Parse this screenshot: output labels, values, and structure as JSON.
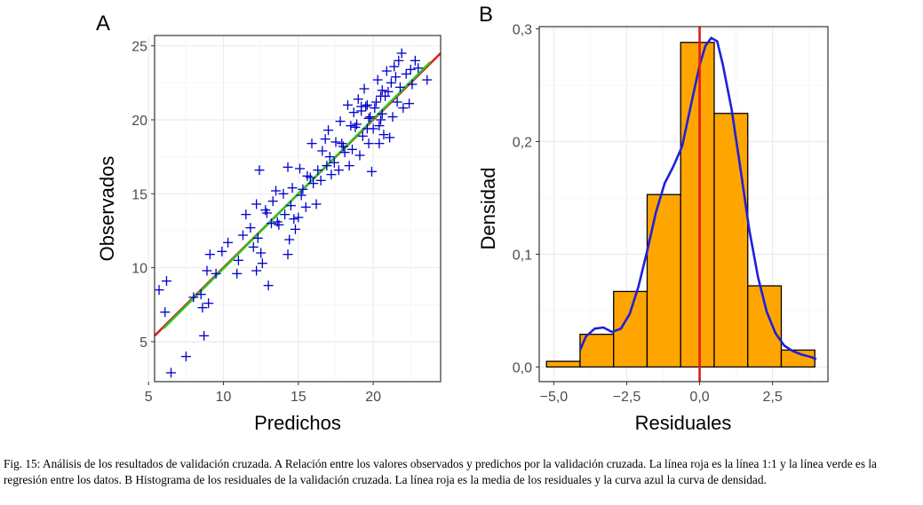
{
  "figure": {
    "caption": "Fig. 15: Análisis de los resultados de validación cruzada. A Relación entre los valores observados y predichos por la validación cruzada. La línea roja es la línea 1:1 y la línea verde es la regresión entre los datos. B Histograma de los residuales de la validación cruzada. La línea roja es la media de los residuales y la curva azul la curva de densidad."
  },
  "colors": {
    "points": "#0000cc",
    "one_to_one_line": "#e31a1c",
    "regression_line": "#22cc22",
    "bars_fill": "#ffa500",
    "bars_stroke": "#000000",
    "density_curve": "#1f1fdd",
    "mean_line": "#e31a1c",
    "grid_major": "#ebebeb",
    "grid_minor": "#f5f5f5"
  },
  "chart_data": [
    {
      "panel_label": "A",
      "type": "scatter",
      "title": "",
      "xlabel": "Predichos",
      "ylabel": "Observados",
      "xlim": [
        5.4,
        24.5
      ],
      "ylim": [
        2.3,
        25.7
      ],
      "xticks": [
        5,
        10,
        15,
        20
      ],
      "yticks": [
        5,
        10,
        15,
        20,
        25
      ],
      "xtick_labels": [
        "5",
        "10",
        "15",
        "20"
      ],
      "ytick_labels": [
        "5",
        "10",
        "15",
        "20",
        "25"
      ],
      "grid": true,
      "marker": "+",
      "lines": [
        {
          "name": "1:1",
          "x": [
            5.4,
            24.5
          ],
          "y": [
            5.4,
            24.5
          ]
        },
        {
          "name": "regresion",
          "x": [
            6.0,
            23.8
          ],
          "y": [
            5.9,
            23.9
          ]
        }
      ],
      "points": [
        [
          5.7,
          8.5
        ],
        [
          6.2,
          9.1
        ],
        [
          6.1,
          7.0
        ],
        [
          6.5,
          2.9
        ],
        [
          7.5,
          4.0
        ],
        [
          8.0,
          8.0
        ],
        [
          8.5,
          8.2
        ],
        [
          8.7,
          5.4
        ],
        [
          8.6,
          7.3
        ],
        [
          9.0,
          7.6
        ],
        [
          8.9,
          9.8
        ],
        [
          9.1,
          10.9
        ],
        [
          9.5,
          9.6
        ],
        [
          9.9,
          11.1
        ],
        [
          10.3,
          11.7
        ],
        [
          10.9,
          9.6
        ],
        [
          11.0,
          10.5
        ],
        [
          11.3,
          12.2
        ],
        [
          11.5,
          13.6
        ],
        [
          11.8,
          12.7
        ],
        [
          12.0,
          11.4
        ],
        [
          12.2,
          14.3
        ],
        [
          12.3,
          12.0
        ],
        [
          12.6,
          10.3
        ],
        [
          12.4,
          16.6
        ],
        [
          12.8,
          13.9
        ],
        [
          12.9,
          13.7
        ],
        [
          13.0,
          8.8
        ],
        [
          12.2,
          9.8
        ],
        [
          12.5,
          11.0
        ],
        [
          13.3,
          14.5
        ],
        [
          13.5,
          15.2
        ],
        [
          13.2,
          13.0
        ],
        [
          13.7,
          12.9
        ],
        [
          13.6,
          13.1
        ],
        [
          14.0,
          15.0
        ],
        [
          14.1,
          13.6
        ],
        [
          14.3,
          16.8
        ],
        [
          14.4,
          11.9
        ],
        [
          14.5,
          14.2
        ],
        [
          14.6,
          15.4
        ],
        [
          14.7,
          13.3
        ],
        [
          14.8,
          12.6
        ],
        [
          15.0,
          13.4
        ],
        [
          15.1,
          16.7
        ],
        [
          15.2,
          14.9
        ],
        [
          15.3,
          15.3
        ],
        [
          14.3,
          10.9
        ],
        [
          15.5,
          14.1
        ],
        [
          15.6,
          16.2
        ],
        [
          15.8,
          16.1
        ],
        [
          15.9,
          18.4
        ],
        [
          16.0,
          15.7
        ],
        [
          16.2,
          14.3
        ],
        [
          16.3,
          16.6
        ],
        [
          16.5,
          15.9
        ],
        [
          16.6,
          17.9
        ],
        [
          16.8,
          18.7
        ],
        [
          17.0,
          19.3
        ],
        [
          17.1,
          17.5
        ],
        [
          17.2,
          16.3
        ],
        [
          17.4,
          17.1
        ],
        [
          17.5,
          18.5
        ],
        [
          17.7,
          16.6
        ],
        [
          17.8,
          19.9
        ],
        [
          18.0,
          18.2
        ],
        [
          18.1,
          17.8
        ],
        [
          18.3,
          21.0
        ],
        [
          18.4,
          16.9
        ],
        [
          18.5,
          19.6
        ],
        [
          18.6,
          18.0
        ],
        [
          18.7,
          20.5
        ],
        [
          18.8,
          19.5
        ],
        [
          18.9,
          19.7
        ],
        [
          19.0,
          21.4
        ],
        [
          19.1,
          17.6
        ],
        [
          19.2,
          20.6
        ],
        [
          19.3,
          18.9
        ],
        [
          19.4,
          22.1
        ],
        [
          19.5,
          20.9
        ],
        [
          19.6,
          21.0
        ],
        [
          19.7,
          18.4
        ],
        [
          19.8,
          20.2
        ],
        [
          19.9,
          16.5
        ],
        [
          20.0,
          19.4
        ],
        [
          20.1,
          20.8
        ],
        [
          20.2,
          21.2
        ],
        [
          20.3,
          22.7
        ],
        [
          20.4,
          19.6
        ],
        [
          20.5,
          20.0
        ],
        [
          20.6,
          22.0
        ],
        [
          20.7,
          19.0
        ],
        [
          20.8,
          21.6
        ],
        [
          20.9,
          23.3
        ],
        [
          21.0,
          21.9
        ],
        [
          21.1,
          18.8
        ],
        [
          21.2,
          22.5
        ],
        [
          21.3,
          20.2
        ],
        [
          21.4,
          23.6
        ],
        [
          21.5,
          22.9
        ],
        [
          21.6,
          21.2
        ],
        [
          21.7,
          24.0
        ],
        [
          21.8,
          22.2
        ],
        [
          21.9,
          24.5
        ],
        [
          22.0,
          20.8
        ],
        [
          22.2,
          23.1
        ],
        [
          22.4,
          21.1
        ],
        [
          22.5,
          23.4
        ],
        [
          22.6,
          22.4
        ],
        [
          22.8,
          24.0
        ],
        [
          23.0,
          23.5
        ],
        [
          23.6,
          22.7
        ],
        [
          20.6,
          20.4
        ],
        [
          20.5,
          21.6
        ],
        [
          19.7,
          20.1
        ],
        [
          20.4,
          18.4
        ],
        [
          16.9,
          16.9
        ],
        [
          17.9,
          18.4
        ],
        [
          19.2,
          20.9
        ],
        [
          19.6,
          19.4
        ]
      ]
    },
    {
      "panel_label": "B",
      "type": "bar",
      "title": "",
      "xlabel": "Residuales",
      "ylabel": "Densidad",
      "xlim": [
        -5.5,
        4.4
      ],
      "ylim": [
        -0.013,
        0.302
      ],
      "xticks": [
        -5.0,
        -2.5,
        0.0,
        2.5
      ],
      "yticks": [
        0.0,
        0.1,
        0.2,
        0.3
      ],
      "xtick_labels": [
        "−5,0",
        "−2,5",
        "0,0",
        "2,5"
      ],
      "ytick_labels": [
        "0,0",
        "0,1",
        "0,2",
        "0,3"
      ],
      "grid": true,
      "bins": [
        {
          "x0": -5.25,
          "x1": -4.1,
          "density": 0.005
        },
        {
          "x0": -4.1,
          "x1": -2.95,
          "density": 0.029
        },
        {
          "x0": -2.95,
          "x1": -1.8,
          "density": 0.067
        },
        {
          "x0": -1.8,
          "x1": -0.65,
          "density": 0.153
        },
        {
          "x0": -0.65,
          "x1": 0.5,
          "density": 0.288
        },
        {
          "x0": 0.5,
          "x1": 1.65,
          "density": 0.225
        },
        {
          "x0": 1.65,
          "x1": 2.8,
          "density": 0.072
        },
        {
          "x0": 2.8,
          "x1": 3.95,
          "density": 0.015
        }
      ],
      "mean": 0.0,
      "density_curve": {
        "x": [
          -4.1,
          -3.9,
          -3.6,
          -3.3,
          -3.0,
          -2.7,
          -2.4,
          -2.1,
          -1.8,
          -1.5,
          -1.2,
          -0.9,
          -0.6,
          -0.3,
          0.0,
          0.2,
          0.4,
          0.6,
          0.8,
          1.1,
          1.4,
          1.7,
          2.0,
          2.3,
          2.6,
          2.9,
          3.2,
          3.5,
          3.8,
          4.0
        ],
        "y": [
          0.015,
          0.027,
          0.034,
          0.035,
          0.031,
          0.034,
          0.047,
          0.071,
          0.103,
          0.137,
          0.163,
          0.178,
          0.196,
          0.232,
          0.268,
          0.285,
          0.292,
          0.289,
          0.268,
          0.228,
          0.176,
          0.122,
          0.08,
          0.049,
          0.03,
          0.019,
          0.014,
          0.011,
          0.009,
          0.007
        ]
      }
    }
  ]
}
